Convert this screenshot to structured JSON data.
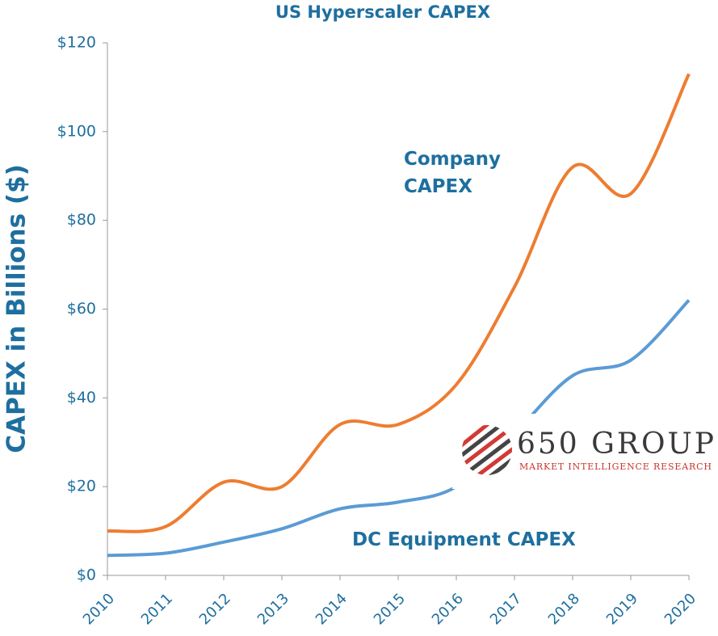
{
  "chart_data": {
    "type": "line",
    "title": "US Hyperscaler CAPEX",
    "y_label": "CAPEX in Billions ($)",
    "x": [
      2010,
      2011,
      2012,
      2013,
      2014,
      2015,
      2016,
      2017,
      2018,
      2019,
      2020
    ],
    "xlim": [
      2010,
      2020
    ],
    "series": [
      {
        "name": "Company CAPEX",
        "color": "#ed7d31",
        "values": [
          10,
          11,
          21,
          20,
          34,
          34,
          43,
          65,
          92,
          86,
          113
        ]
      },
      {
        "name": "DC Equipment CAPEX",
        "color": "#5b9bd5",
        "values": [
          4.5,
          5,
          7.5,
          10.5,
          15,
          16.5,
          20,
          32,
          45,
          48.5,
          62
        ]
      }
    ],
    "ylim": [
      0,
      120
    ],
    "yticks": [
      {
        "value": 0,
        "label": "$0"
      },
      {
        "value": 20,
        "label": "$20"
      },
      {
        "value": 40,
        "label": "$40"
      },
      {
        "value": 60,
        "label": "$60"
      },
      {
        "value": 80,
        "label": "$80"
      },
      {
        "value": 100,
        "label": "$100"
      },
      {
        "value": 120,
        "label": "$120"
      }
    ],
    "logo": {
      "name": "650 GROUP",
      "tagline": "MARKET INTELLIGENCE RESEARCH"
    }
  }
}
